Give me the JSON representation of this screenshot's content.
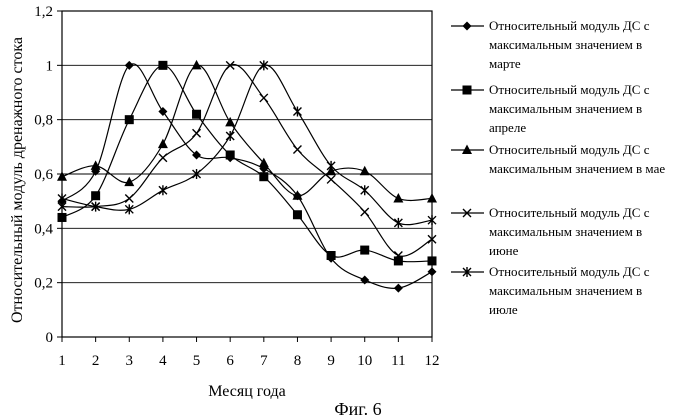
{
  "chart_data": {
    "type": "line",
    "title": "",
    "caption": "Фиг. 6",
    "xlabel": "Месяц года",
    "ylabel": "Относительный модуль дренажного стока",
    "x": [
      1,
      2,
      3,
      4,
      5,
      6,
      7,
      8,
      9,
      10,
      11,
      12
    ],
    "x_tick_labels": [
      "1",
      "2",
      "3",
      "4",
      "5",
      "6",
      "7",
      "8",
      "9",
      "10",
      "11",
      "12"
    ],
    "xlim": [
      1,
      12
    ],
    "ylim": [
      0,
      1.2
    ],
    "y_ticks": [
      0,
      0.2,
      0.4,
      0.6,
      0.8,
      1,
      1.2
    ],
    "y_tick_labels": [
      "0",
      "0,2",
      "0,4",
      "0,6",
      "0,8",
      "1",
      "1,2"
    ],
    "grid": "horizontal",
    "legend_position": "right",
    "series": [
      {
        "name": "Относительный модуль ДС с максимальным значением в марте",
        "legend_lines": [
          "Относительный модуль ДС с",
          "максимальным значением в",
          "марте"
        ],
        "marker": "diamond",
        "values": [
          0.5,
          0.61,
          1.0,
          0.83,
          0.67,
          0.66,
          0.62,
          0.52,
          0.29,
          0.21,
          0.18,
          0.24
        ]
      },
      {
        "name": "Относительный модуль ДС с максимальным значением в апреле",
        "legend_lines": [
          "Относительный модуль ДС с",
          "максимальным значением в",
          "апреле"
        ],
        "marker": "square",
        "values": [
          0.44,
          0.52,
          0.8,
          1.0,
          0.82,
          0.67,
          0.59,
          0.45,
          0.3,
          0.32,
          0.28,
          0.28
        ]
      },
      {
        "name": "Относительный модуль ДС с максимальным значением в мае",
        "legend_lines": [
          "Относительный модуль ДС с",
          "максимальным значением в мае"
        ],
        "marker": "triangle",
        "values": [
          0.59,
          0.63,
          0.57,
          0.71,
          1.0,
          0.79,
          0.64,
          0.52,
          0.61,
          0.61,
          0.51,
          0.51
        ]
      },
      {
        "name": "Относительный модуль ДС с максимальным значением в июне",
        "legend_lines": [
          "Относительный модуль ДС с",
          "максимальным значением в",
          "июне"
        ],
        "marker": "x",
        "values": [
          0.48,
          0.48,
          0.51,
          0.66,
          0.75,
          1.0,
          0.88,
          0.69,
          0.58,
          0.46,
          0.3,
          0.36
        ]
      },
      {
        "name": "Относительный модуль ДС с максимальным значением в июле",
        "legend_lines": [
          "Относительный модуль ДС с",
          "максимальным значением в",
          "июле"
        ],
        "marker": "star",
        "values": [
          0.51,
          0.48,
          0.47,
          0.54,
          0.6,
          0.74,
          1.0,
          0.83,
          0.63,
          0.54,
          0.42,
          0.43
        ]
      }
    ]
  }
}
